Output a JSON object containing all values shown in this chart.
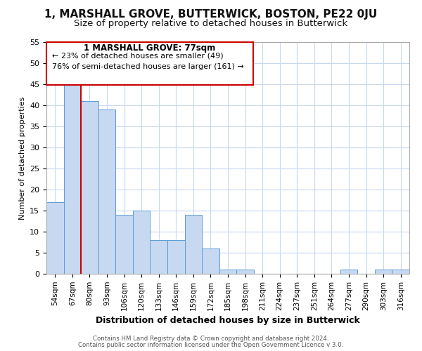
{
  "title": "1, MARSHALL GROVE, BUTTERWICK, BOSTON, PE22 0JU",
  "subtitle": "Size of property relative to detached houses in Butterwick",
  "xlabel": "Distribution of detached houses by size in Butterwick",
  "ylabel": "Number of detached properties",
  "bar_labels": [
    "54sqm",
    "67sqm",
    "80sqm",
    "93sqm",
    "106sqm",
    "120sqm",
    "133sqm",
    "146sqm",
    "159sqm",
    "172sqm",
    "185sqm",
    "198sqm",
    "211sqm",
    "224sqm",
    "237sqm",
    "251sqm",
    "264sqm",
    "277sqm",
    "290sqm",
    "303sqm",
    "316sqm"
  ],
  "bar_values": [
    17,
    45,
    41,
    39,
    14,
    15,
    8,
    8,
    14,
    6,
    1,
    1,
    0,
    0,
    0,
    0,
    0,
    1,
    0,
    1,
    1
  ],
  "bar_color": "#c6d9f1",
  "bar_edge_color": "#5b9bd5",
  "vline_color": "#cc0000",
  "ylim": [
    0,
    55
  ],
  "yticks": [
    0,
    5,
    10,
    15,
    20,
    25,
    30,
    35,
    40,
    45,
    50,
    55
  ],
  "annotation_title": "1 MARSHALL GROVE: 77sqm",
  "annotation_line1": "← 23% of detached houses are smaller (49)",
  "annotation_line2": "76% of semi-detached houses are larger (161) →",
  "footer_line1": "Contains HM Land Registry data © Crown copyright and database right 2024.",
  "footer_line2": "Contains public sector information licensed under the Open Government Licence v 3.0.",
  "background_color": "#ffffff",
  "grid_color": "#c8d8ee",
  "title_fontsize": 11,
  "subtitle_fontsize": 9.5,
  "bar_fontsize": 7.5,
  "ylabel_fontsize": 8,
  "xlabel_fontsize": 9
}
